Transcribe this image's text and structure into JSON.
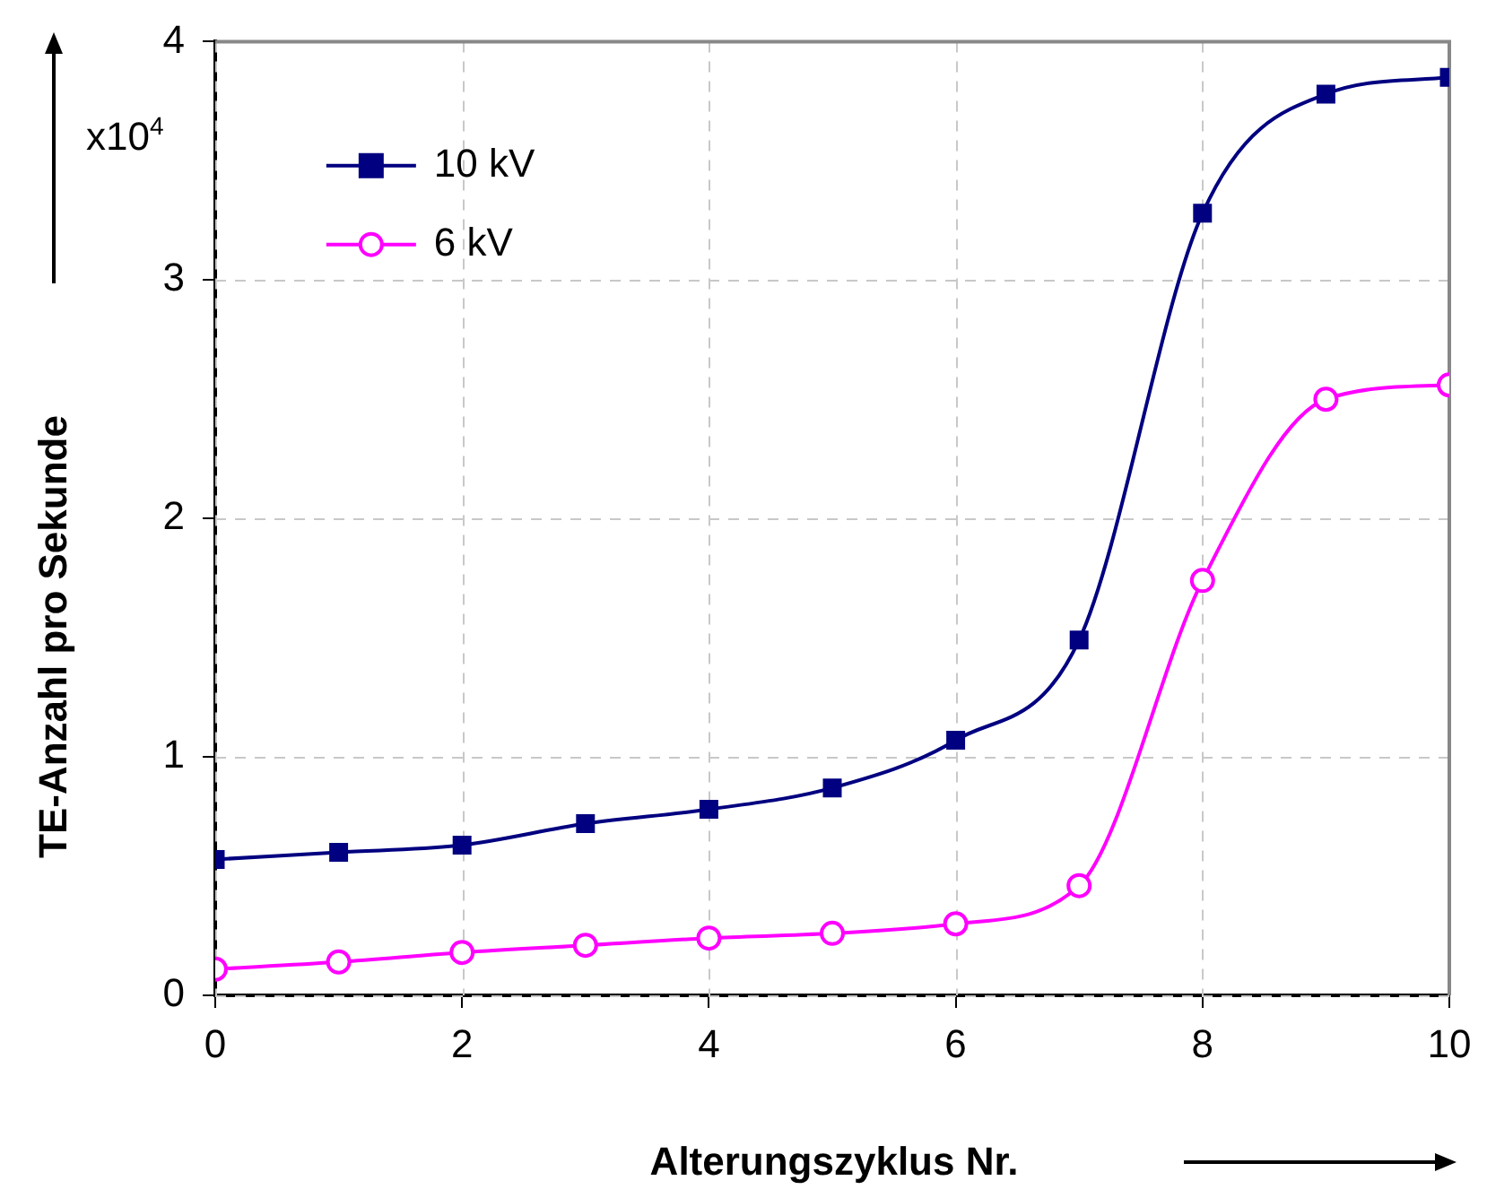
{
  "chart_data": {
    "type": "line",
    "xlabel": "Alterungszyklus Nr.",
    "ylabel": "TE-Anzahl pro Sekunde",
    "annotations": [
      "x10$^{4}$"
    ],
    "x": [
      0,
      1,
      2,
      3,
      4,
      5,
      6,
      7,
      8,
      9,
      10
    ],
    "series": [
      {
        "name": "10 kV",
        "color": "#000080",
        "marker": "square",
        "values": [
          0.57,
          0.6,
          0.63,
          0.72,
          0.78,
          0.87,
          1.07,
          1.49,
          3.28,
          3.78,
          3.85
        ]
      },
      {
        "name": "6 kV",
        "color": "#ff00ff",
        "marker": "circle",
        "values": [
          0.11,
          0.14,
          0.18,
          0.21,
          0.24,
          0.26,
          0.3,
          0.46,
          1.74,
          2.5,
          2.56
        ]
      }
    ],
    "xlim": [
      0,
      10
    ],
    "xticks": [
      0,
      2,
      4,
      6,
      8,
      10
    ],
    "ylim": [
      0,
      4
    ],
    "yticks": [
      0,
      1,
      2,
      3,
      4
    ],
    "grid": true,
    "legend": "top left",
    "line_style": "solid"
  }
}
